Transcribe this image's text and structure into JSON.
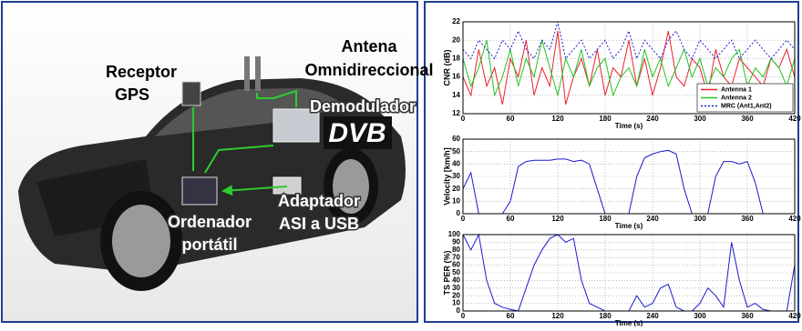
{
  "diagram": {
    "antenna": [
      "Antena",
      "Omnidireccional"
    ],
    "gps": [
      "Receptor",
      "GPS"
    ],
    "demodulator": "Demodulador",
    "logo": "DVB",
    "adapter": [
      "Adaptador",
      "ASI a USB"
    ],
    "laptop": [
      "Ordenador",
      "portátil"
    ]
  },
  "chart_data": [
    {
      "type": "line",
      "ylabel": "CNR (dB)",
      "xlabel": "Time (s)",
      "x": [
        0,
        10,
        20,
        30,
        40,
        50,
        60,
        70,
        80,
        90,
        100,
        110,
        120,
        130,
        140,
        150,
        160,
        170,
        180,
        190,
        200,
        210,
        220,
        230,
        240,
        250,
        260,
        270,
        280,
        290,
        300,
        310,
        320,
        330,
        340,
        350,
        360,
        370,
        380,
        390,
        400,
        410,
        420
      ],
      "series": [
        {
          "name": "Antenna 1",
          "color": "#e8202a",
          "line_style": "solid",
          "values": [
            16,
            14,
            19,
            15,
            17,
            13,
            18,
            16,
            20,
            14,
            17,
            15,
            21,
            13,
            16,
            18,
            15,
            19,
            14,
            17,
            16,
            20,
            15,
            18,
            14,
            17,
            21,
            16,
            15,
            18,
            17,
            14,
            19,
            16,
            15,
            18,
            17,
            16,
            15,
            18,
            17,
            19,
            16
          ]
        },
        {
          "name": "Antenna 2",
          "color": "#22c422",
          "line_style": "solid",
          "values": [
            18,
            15,
            17,
            20,
            14,
            16,
            19,
            15,
            18,
            16,
            20,
            17,
            14,
            18,
            16,
            19,
            15,
            17,
            18,
            14,
            16,
            17,
            15,
            19,
            16,
            18,
            15,
            17,
            19,
            16,
            18,
            15,
            17,
            16,
            18,
            19,
            15,
            17,
            16,
            18,
            17,
            15,
            18
          ]
        },
        {
          "name": "MRC (Ant1,Ant2)",
          "color": "#1a1ad0",
          "line_style": "dotted",
          "values": [
            19,
            18,
            20,
            19,
            18,
            20,
            19,
            21,
            19,
            18,
            20,
            19,
            22,
            18,
            19,
            20,
            18,
            19,
            20,
            18,
            19,
            21,
            18,
            20,
            19,
            18,
            20,
            21,
            19,
            18,
            20,
            19,
            18,
            19,
            20,
            18,
            19,
            20,
            19,
            18,
            19,
            20,
            19
          ]
        }
      ],
      "xlim": [
        0,
        420
      ],
      "xticks": [
        0,
        60,
        120,
        180,
        240,
        300,
        360,
        420
      ],
      "ylim": [
        12,
        22
      ],
      "yticks": [
        12,
        14,
        16,
        18,
        20,
        22
      ],
      "grid": true,
      "legend": "lower-right"
    },
    {
      "type": "line",
      "ylabel": "Velocity [km/h]",
      "xlabel": "Time (s)",
      "x": [
        0,
        10,
        20,
        30,
        40,
        50,
        60,
        70,
        80,
        90,
        100,
        110,
        120,
        130,
        140,
        150,
        160,
        170,
        180,
        190,
        200,
        210,
        220,
        230,
        240,
        250,
        260,
        270,
        280,
        290,
        300,
        310,
        320,
        330,
        340,
        350,
        360,
        370,
        380,
        390,
        400,
        410,
        420
      ],
      "series": [
        {
          "color": "#1a1ad0",
          "line_style": "solid",
          "values": [
            20,
            33,
            0,
            0,
            0,
            0,
            10,
            38,
            42,
            43,
            43,
            43,
            44,
            44,
            42,
            43,
            40,
            20,
            0,
            0,
            0,
            0,
            30,
            45,
            48,
            50,
            51,
            48,
            20,
            0,
            0,
            0,
            30,
            42,
            42,
            40,
            42,
            25,
            0,
            0,
            0,
            0,
            0
          ]
        }
      ],
      "xlim": [
        0,
        420
      ],
      "xticks": [
        0,
        60,
        120,
        180,
        240,
        300,
        360,
        420
      ],
      "ylim": [
        0,
        60
      ],
      "yticks": [
        0,
        10,
        20,
        30,
        40,
        50,
        60
      ],
      "grid": true
    },
    {
      "type": "line",
      "ylabel": "TS PER (%)",
      "xlabel": "Time (s)",
      "x": [
        0,
        10,
        20,
        30,
        40,
        50,
        60,
        70,
        80,
        90,
        100,
        110,
        120,
        130,
        140,
        150,
        160,
        170,
        180,
        190,
        200,
        210,
        220,
        230,
        240,
        250,
        260,
        270,
        280,
        290,
        300,
        310,
        320,
        330,
        340,
        350,
        360,
        370,
        380,
        390,
        400,
        410,
        420
      ],
      "series": [
        {
          "color": "#1a1ad0",
          "line_style": "solid",
          "values": [
            100,
            80,
            100,
            40,
            10,
            5,
            2,
            0,
            30,
            60,
            80,
            95,
            100,
            90,
            95,
            40,
            10,
            5,
            0,
            0,
            0,
            0,
            20,
            5,
            10,
            30,
            35,
            5,
            0,
            0,
            10,
            30,
            20,
            5,
            90,
            40,
            5,
            10,
            2,
            0,
            0,
            0,
            60
          ]
        }
      ],
      "xlim": [
        0,
        420
      ],
      "xticks": [
        0,
        60,
        120,
        180,
        240,
        300,
        360,
        420
      ],
      "ylim": [
        0,
        100
      ],
      "yticks": [
        0,
        10,
        20,
        30,
        40,
        50,
        60,
        70,
        80,
        90,
        100
      ],
      "grid": true
    }
  ]
}
